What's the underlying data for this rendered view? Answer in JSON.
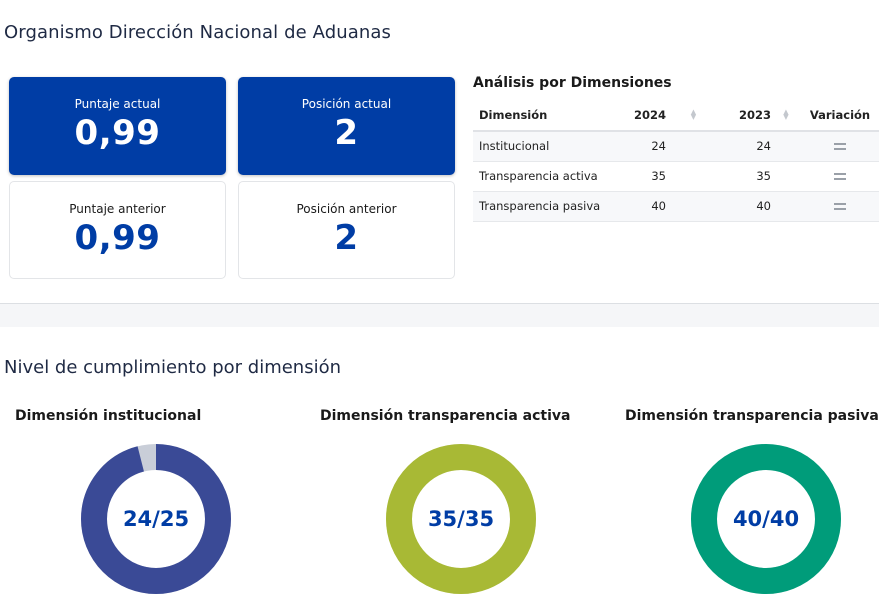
{
  "header": {
    "title": "Organismo Dirección Nacional de Aduanas"
  },
  "kpis": [
    {
      "label": "Puntaje actual",
      "value": "0,99"
    },
    {
      "label": "Posición actual",
      "value": "2"
    },
    {
      "label": "Puntaje anterior",
      "value": "0,99"
    },
    {
      "label": "Posición anterior",
      "value": "2"
    }
  ],
  "dimensions_table": {
    "title": "Análisis por Dimensiones",
    "headers": {
      "dim": "Dimensión",
      "y1": "2024",
      "y2": "2023",
      "var": "Variación"
    },
    "rows": [
      {
        "dim": "Institucional",
        "y1": "24",
        "y2": "24",
        "var": "equal-icon"
      },
      {
        "dim": "Transparencia activa",
        "y1": "35",
        "y2": "35",
        "var": "equal-icon"
      },
      {
        "dim": "Transparencia pasiva",
        "y1": "40",
        "y2": "40",
        "var": "equal-icon"
      }
    ]
  },
  "compliance": {
    "title": "Nivel de cumplimiento por dimensión",
    "gauges": [
      {
        "title": "Dimensión institucional",
        "label": "24/25",
        "value": 24,
        "max": 25,
        "color": "#3a4a96",
        "track": "#c9ced8"
      },
      {
        "title": "Dimensión transparencia activa",
        "label": "35/35",
        "value": 35,
        "max": 35,
        "color": "#a8b935",
        "track": "#dde3b8"
      },
      {
        "title": "Dimensión transparencia pasiva",
        "label": "40/40",
        "value": 40,
        "max": 40,
        "color": "#009c7a",
        "track": "#b8e3d8"
      }
    ]
  },
  "colors": {
    "primary": "#003da5",
    "text": "#1f2a44"
  }
}
